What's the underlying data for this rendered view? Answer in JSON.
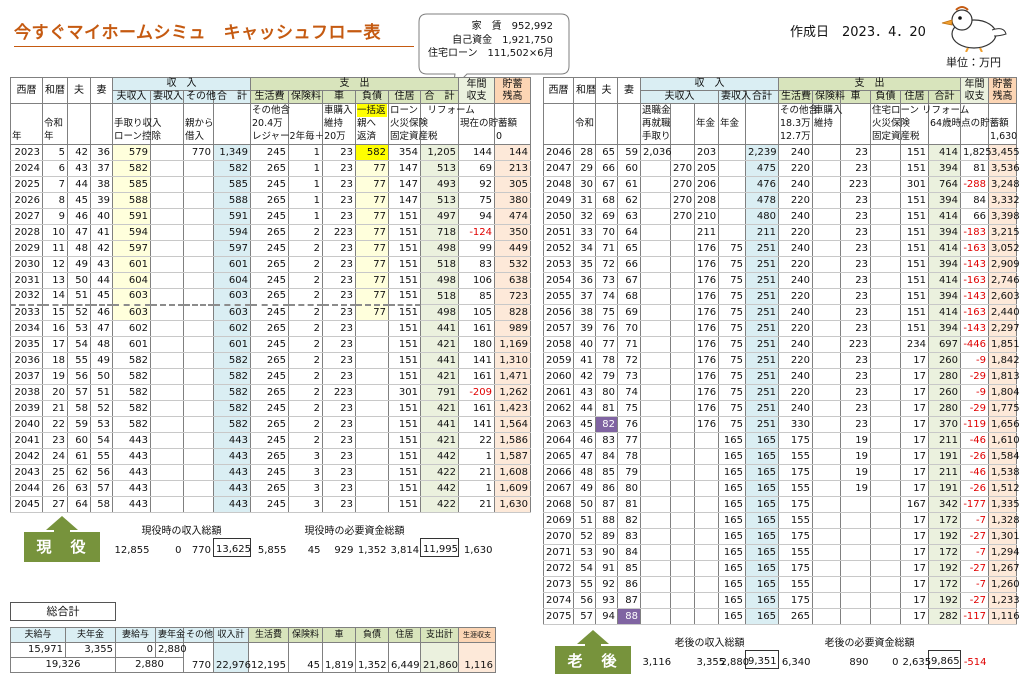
{
  "header": {
    "title": "今すぐマイホームシミュ　キャッシュフロー表",
    "created": "作成日　2023．4．20",
    "unit": "単位：万円",
    "callout": [
      "家　賃　952,992",
      "自己資金　1,921,750",
      "住宅ローン　111,502×6月"
    ]
  },
  "left_table": {
    "header_top": [
      "西暦",
      "和暦",
      "夫",
      "妻",
      "収　入",
      "支　出",
      [
        "年間",
        "収支"
      ],
      [
        "貯蓄",
        "残高"
      ]
    ],
    "header_sub": [
      "夫収入",
      "妻収入",
      "その他",
      "合　計",
      "生活費",
      "保険料",
      "車",
      "負債",
      "住居",
      "合　計"
    ],
    "notes": [
      [
        null,
        null,
        "年"
      ],
      [
        null,
        "令和",
        "年"
      ],
      null,
      null,
      [
        null,
        "手取り収入",
        "ローン控除"
      ],
      null,
      [
        null,
        "親から",
        "借入"
      ],
      null,
      [
        "その他含",
        "20.4万",
        "レジャー2年毎＋20万"
      ],
      null,
      [
        "車購入",
        "維持",
        null
      ],
      [
        "一括返",
        "親へ",
        "返済"
      ],
      [
        "ローン　リフォーム",
        "火災保険",
        "固定資産税"
      ],
      null,
      [
        null,
        "現在の貯蓄額",
        null
      ],
      [
        null,
        null,
        "0"
      ]
    ],
    "rows": [
      [
        "2023",
        "5",
        "42",
        "36",
        "579",
        null,
        "770",
        "1,349",
        "245",
        "1",
        "23",
        "582",
        "354",
        "1,205",
        "144",
        "144"
      ],
      [
        "2024",
        "6",
        "43",
        "37",
        "582",
        null,
        null,
        "582",
        "265",
        "1",
        "23",
        "77",
        "147",
        "513",
        "69",
        "213"
      ],
      [
        "2025",
        "7",
        "44",
        "38",
        "585",
        null,
        null,
        "585",
        "245",
        "1",
        "23",
        "77",
        "147",
        "493",
        "92",
        "305"
      ],
      [
        "2026",
        "8",
        "45",
        "39",
        "588",
        null,
        null,
        "588",
        "265",
        "1",
        "23",
        "77",
        "147",
        "513",
        "75",
        "380"
      ],
      [
        "2027",
        "9",
        "46",
        "40",
        "591",
        null,
        null,
        "591",
        "245",
        "1",
        "23",
        "77",
        "151",
        "497",
        "94",
        "474"
      ],
      [
        "2028",
        "10",
        "47",
        "41",
        "594",
        null,
        null,
        "594",
        "265",
        "2",
        "223",
        "77",
        "151",
        "718",
        "-124",
        "350"
      ],
      [
        "2029",
        "11",
        "48",
        "42",
        "597",
        null,
        null,
        "597",
        "245",
        "2",
        "23",
        "77",
        "151",
        "498",
        "99",
        "449"
      ],
      [
        "2030",
        "12",
        "49",
        "43",
        "601",
        null,
        null,
        "601",
        "265",
        "2",
        "23",
        "77",
        "151",
        "518",
        "83",
        "532"
      ],
      [
        "2031",
        "13",
        "50",
        "44",
        "604",
        null,
        null,
        "604",
        "245",
        "2",
        "23",
        "77",
        "151",
        "498",
        "106",
        "638"
      ],
      [
        "2032",
        "14",
        "51",
        "45",
        "603",
        null,
        null,
        "603",
        "265",
        "2",
        "23",
        "77",
        "151",
        "518",
        "85",
        "723"
      ],
      [
        "2033",
        "15",
        "52",
        "46",
        "603",
        null,
        null,
        "603",
        "245",
        "2",
        "23",
        "77",
        "151",
        "498",
        "105",
        "828"
      ],
      [
        "2034",
        "16",
        "53",
        "47",
        "602",
        null,
        null,
        "602",
        "265",
        "2",
        "23",
        null,
        "151",
        "441",
        "161",
        "989"
      ],
      [
        "2035",
        "17",
        "54",
        "48",
        "601",
        null,
        null,
        "601",
        "245",
        "2",
        "23",
        null,
        "151",
        "421",
        "180",
        "1,169"
      ],
      [
        "2036",
        "18",
        "55",
        "49",
        "582",
        null,
        null,
        "582",
        "265",
        "2",
        "23",
        null,
        "151",
        "441",
        "141",
        "1,310"
      ],
      [
        "2037",
        "19",
        "56",
        "50",
        "582",
        null,
        null,
        "582",
        "245",
        "2",
        "23",
        null,
        "151",
        "421",
        "161",
        "1,471"
      ],
      [
        "2038",
        "20",
        "57",
        "51",
        "582",
        null,
        null,
        "582",
        "265",
        "2",
        "223",
        null,
        "301",
        "791",
        "-209",
        "1,262"
      ],
      [
        "2039",
        "21",
        "58",
        "52",
        "582",
        null,
        null,
        "582",
        "245",
        "2",
        "23",
        null,
        "151",
        "421",
        "161",
        "1,423"
      ],
      [
        "2040",
        "22",
        "59",
        "53",
        "582",
        null,
        null,
        "582",
        "265",
        "2",
        "23",
        null,
        "151",
        "441",
        "141",
        "1,564"
      ],
      [
        "2041",
        "23",
        "60",
        "54",
        "443",
        null,
        null,
        "443",
        "245",
        "2",
        "23",
        null,
        "151",
        "421",
        "22",
        "1,586"
      ],
      [
        "2042",
        "24",
        "61",
        "55",
        "443",
        null,
        null,
        "443",
        "265",
        "3",
        "23",
        null,
        "151",
        "442",
        "1",
        "1,587"
      ],
      [
        "2043",
        "25",
        "62",
        "56",
        "443",
        null,
        null,
        "443",
        "245",
        "3",
        "23",
        null,
        "151",
        "422",
        "21",
        "1,608"
      ],
      [
        "2044",
        "26",
        "63",
        "57",
        "443",
        null,
        null,
        "443",
        "265",
        "3",
        "23",
        null,
        "151",
        "442",
        "1",
        "1,609"
      ],
      [
        "2045",
        "27",
        "64",
        "58",
        "443",
        null,
        null,
        "443",
        "245",
        "3",
        "23",
        null,
        "151",
        "422",
        "21",
        "1,630"
      ]
    ],
    "badge": "現　役",
    "summary_labels": [
      "現役時の収入総額",
      "現役時の必要資金総額"
    ],
    "summary": [
      null,
      null,
      null,
      null,
      "12,855",
      "0",
      "770",
      "13,625",
      "5,855",
      "45",
      "929",
      "1,352",
      "3,814",
      "11,995",
      "1,630",
      null
    ]
  },
  "right_table": {
    "header_top": [
      "西暦",
      "和暦",
      "夫",
      "妻",
      "収　入",
      "支　出",
      [
        "年間",
        "収支"
      ],
      [
        "貯蓄",
        "残高"
      ]
    ],
    "header_sub": [
      "夫収入",
      "妻収入",
      "合計",
      "生活費",
      "保険料",
      "車",
      "負債",
      "住居",
      "合計"
    ],
    "notes": [
      null,
      [
        null,
        "令和",
        null
      ],
      null,
      null,
      [
        "退職金",
        "再就職",
        "手取り"
      ],
      null,
      [
        null,
        "年金",
        null
      ],
      [
        null,
        "年金",
        null
      ],
      null,
      [
        "その他含",
        "18.3万",
        "12.7万"
      ],
      [
        "車購入",
        "維持",
        null
      ],
      null,
      [
        "住宅ローン リフォーム",
        "火災保険",
        "固定資産税"
      ],
      null,
      [
        null,
        "64歳時点の貯蓄額",
        null
      ],
      null,
      [
        null,
        null,
        "1,630"
      ]
    ],
    "rows": [
      [
        "2046",
        "28",
        "65",
        "59",
        "2,036",
        null,
        "203",
        null,
        "2,239",
        "240",
        null,
        "23",
        null,
        "151",
        "414",
        "1,825",
        "3,455"
      ],
      [
        "2047",
        "29",
        "66",
        "60",
        null,
        "270",
        "205",
        null,
        "475",
        "220",
        null,
        "23",
        null,
        "151",
        "394",
        "81",
        "3,536"
      ],
      [
        "2048",
        "30",
        "67",
        "61",
        null,
        "270",
        "206",
        null,
        "476",
        "240",
        null,
        "223",
        null,
        "301",
        "764",
        "-288",
        "3,248"
      ],
      [
        "2049",
        "31",
        "68",
        "62",
        null,
        "270",
        "208",
        null,
        "478",
        "220",
        null,
        "23",
        null,
        "151",
        "394",
        "84",
        "3,332"
      ],
      [
        "2050",
        "32",
        "69",
        "63",
        null,
        "270",
        "210",
        null,
        "480",
        "240",
        null,
        "23",
        null,
        "151",
        "414",
        "66",
        "3,398"
      ],
      [
        "2051",
        "33",
        "70",
        "64",
        null,
        null,
        "211",
        null,
        "211",
        "220",
        null,
        "23",
        null,
        "151",
        "394",
        "-183",
        "3,215"
      ],
      [
        "2052",
        "34",
        "71",
        "65",
        null,
        null,
        "176",
        "75",
        "251",
        "240",
        null,
        "23",
        null,
        "151",
        "414",
        "-163",
        "3,052"
      ],
      [
        "2053",
        "35",
        "72",
        "66",
        null,
        null,
        "176",
        "75",
        "251",
        "220",
        null,
        "23",
        null,
        "151",
        "394",
        "-143",
        "2,909"
      ],
      [
        "2054",
        "36",
        "73",
        "67",
        null,
        null,
        "176",
        "75",
        "251",
        "240",
        null,
        "23",
        null,
        "151",
        "414",
        "-163",
        "2,746"
      ],
      [
        "2055",
        "37",
        "74",
        "68",
        null,
        null,
        "176",
        "75",
        "251",
        "220",
        null,
        "23",
        null,
        "151",
        "394",
        "-143",
        "2,603"
      ],
      [
        "2056",
        "38",
        "75",
        "69",
        null,
        null,
        "176",
        "75",
        "251",
        "240",
        null,
        "23",
        null,
        "151",
        "414",
        "-163",
        "2,440"
      ],
      [
        "2057",
        "39",
        "76",
        "70",
        null,
        null,
        "176",
        "75",
        "251",
        "220",
        null,
        "23",
        null,
        "151",
        "394",
        "-143",
        "2,297"
      ],
      [
        "2058",
        "40",
        "77",
        "71",
        null,
        null,
        "176",
        "75",
        "251",
        "240",
        null,
        "223",
        null,
        "234",
        "697",
        "-446",
        "1,851"
      ],
      [
        "2059",
        "41",
        "78",
        "72",
        null,
        null,
        "176",
        "75",
        "251",
        "220",
        null,
        "23",
        null,
        "17",
        "260",
        "-9",
        "1,842"
      ],
      [
        "2060",
        "42",
        "79",
        "73",
        null,
        null,
        "176",
        "75",
        "251",
        "240",
        null,
        "23",
        null,
        "17",
        "280",
        "-29",
        "1,813"
      ],
      [
        "2061",
        "43",
        "80",
        "74",
        null,
        null,
        "176",
        "75",
        "251",
        "220",
        null,
        "23",
        null,
        "17",
        "260",
        "-9",
        "1,804"
      ],
      [
        "2062",
        "44",
        "81",
        "75",
        null,
        null,
        "176",
        "75",
        "251",
        "240",
        null,
        "23",
        null,
        "17",
        "280",
        "-29",
        "1,775"
      ],
      [
        "2063",
        "45",
        "82",
        "76",
        null,
        null,
        "176",
        "75",
        "251",
        "330",
        null,
        "23",
        null,
        "17",
        "370",
        "-119",
        "1,656"
      ],
      [
        "2064",
        "46",
        "83",
        "77",
        null,
        null,
        null,
        "165",
        "165",
        "175",
        null,
        "19",
        null,
        "17",
        "211",
        "-46",
        "1,610"
      ],
      [
        "2065",
        "47",
        "84",
        "78",
        null,
        null,
        null,
        "165",
        "165",
        "155",
        null,
        "19",
        null,
        "17",
        "191",
        "-26",
        "1,584"
      ],
      [
        "2066",
        "48",
        "85",
        "79",
        null,
        null,
        null,
        "165",
        "165",
        "175",
        null,
        "19",
        null,
        "17",
        "211",
        "-46",
        "1,538"
      ],
      [
        "2067",
        "49",
        "86",
        "80",
        null,
        null,
        null,
        "165",
        "165",
        "155",
        null,
        "19",
        null,
        "17",
        "191",
        "-26",
        "1,512"
      ],
      [
        "2068",
        "50",
        "87",
        "81",
        null,
        null,
        null,
        "165",
        "165",
        "175",
        null,
        null,
        null,
        "167",
        "342",
        "-177",
        "1,335"
      ],
      [
        "2069",
        "51",
        "88",
        "82",
        null,
        null,
        null,
        "165",
        "165",
        "155",
        null,
        null,
        null,
        "17",
        "172",
        "-7",
        "1,328"
      ],
      [
        "2070",
        "52",
        "89",
        "83",
        null,
        null,
        null,
        "165",
        "165",
        "175",
        null,
        null,
        null,
        "17",
        "192",
        "-27",
        "1,301"
      ],
      [
        "2071",
        "53",
        "90",
        "84",
        null,
        null,
        null,
        "165",
        "165",
        "155",
        null,
        null,
        null,
        "17",
        "172",
        "-7",
        "1,294"
      ],
      [
        "2072",
        "54",
        "91",
        "85",
        null,
        null,
        null,
        "165",
        "165",
        "175",
        null,
        null,
        null,
        "17",
        "192",
        "-27",
        "1,267"
      ],
      [
        "2073",
        "55",
        "92",
        "86",
        null,
        null,
        null,
        "165",
        "165",
        "155",
        null,
        null,
        null,
        "17",
        "172",
        "-7",
        "1,260"
      ],
      [
        "2074",
        "56",
        "93",
        "87",
        null,
        null,
        null,
        "165",
        "165",
        "175",
        null,
        null,
        null,
        "17",
        "192",
        "-27",
        "1,233"
      ],
      [
        "2075",
        "57",
        "94",
        "88",
        null,
        null,
        null,
        "165",
        "165",
        "265",
        null,
        null,
        null,
        "17",
        "282",
        "-117",
        "1,116"
      ]
    ],
    "badge": "老　後",
    "summary_labels": [
      "老後の収入総額",
      "老後の必要資金総額"
    ],
    "summary": [
      null,
      null,
      null,
      null,
      "3,116",
      null,
      "3,355",
      "2,880",
      "9,351",
      "6,340",
      null,
      "890",
      "0",
      "2,635",
      "9,865",
      "-514",
      null
    ]
  },
  "totals": {
    "title": "総合計",
    "columns": [
      "夫給与",
      "夫年金",
      "妻給与",
      "妻年金",
      "その他",
      "収入計",
      "生活費",
      "保険料",
      "車",
      "負債",
      "住居",
      "支出計",
      "生涯収支"
    ],
    "row1": [
      "15,971",
      "3,355",
      "0",
      "2,880"
    ],
    "row2": [
      "19,326",
      "2,880",
      "770",
      "22,976",
      "12,195",
      "45",
      "1,819",
      "1,352",
      "6,449",
      "21,860",
      "1,116"
    ]
  }
}
